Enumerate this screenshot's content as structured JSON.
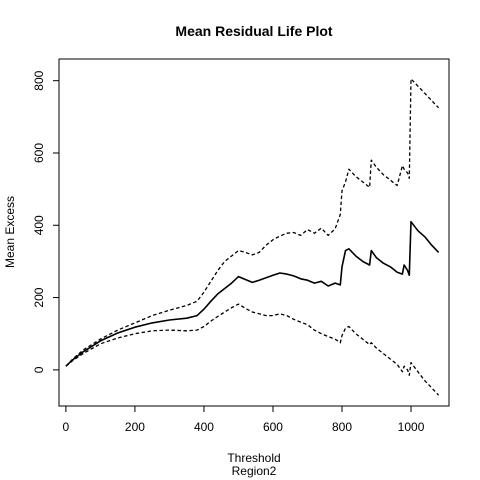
{
  "chart_data": {
    "type": "line",
    "title": "Mean Residual Life Plot",
    "xlabel": "Threshold",
    "xlabel_sub": "Region2",
    "ylabel": "Mean Excess",
    "xlim": [
      -20,
      1110
    ],
    "ylim": [
      -100,
      860
    ],
    "x_ticks": [
      0,
      200,
      400,
      600,
      800,
      1000
    ],
    "y_ticks": [
      0,
      200,
      400,
      600,
      800
    ],
    "grid": false,
    "legend": "none",
    "series": [
      {
        "role": "mean",
        "style": "solid",
        "x": [
          0,
          20,
          50,
          100,
          150,
          200,
          250,
          300,
          350,
          380,
          400,
          420,
          440,
          460,
          480,
          500,
          520,
          540,
          560,
          580,
          600,
          620,
          640,
          660,
          680,
          700,
          720,
          740,
          760,
          780,
          795,
          800,
          810,
          820,
          840,
          860,
          880,
          885,
          900,
          920,
          940,
          960,
          975,
          980,
          990,
          995,
          1000,
          1020,
          1040,
          1060,
          1080
        ],
        "y": [
          10,
          28,
          50,
          80,
          102,
          118,
          130,
          138,
          143,
          150,
          168,
          190,
          210,
          225,
          240,
          258,
          250,
          242,
          248,
          255,
          262,
          268,
          265,
          260,
          252,
          248,
          240,
          245,
          232,
          240,
          235,
          285,
          330,
          335,
          315,
          300,
          290,
          330,
          310,
          295,
          285,
          270,
          265,
          290,
          275,
          262,
          410,
          385,
          368,
          345,
          325
        ]
      },
      {
        "role": "upper-confidence",
        "style": "dashed",
        "x": [
          0,
          20,
          50,
          100,
          150,
          200,
          250,
          300,
          350,
          380,
          400,
          420,
          440,
          460,
          480,
          500,
          520,
          540,
          560,
          580,
          600,
          620,
          640,
          660,
          680,
          700,
          720,
          740,
          760,
          780,
          795,
          800,
          810,
          820,
          840,
          860,
          880,
          885,
          900,
          920,
          940,
          960,
          975,
          980,
          990,
          995,
          1000,
          1020,
          1040,
          1060,
          1080
        ],
        "y": [
          10,
          30,
          55,
          85,
          110,
          130,
          150,
          165,
          178,
          190,
          215,
          245,
          275,
          300,
          315,
          330,
          325,
          318,
          325,
          345,
          360,
          370,
          378,
          380,
          372,
          388,
          378,
          392,
          372,
          390,
          430,
          495,
          520,
          555,
          535,
          520,
          505,
          580,
          560,
          540,
          525,
          510,
          565,
          555,
          545,
          530,
          805,
          785,
          765,
          745,
          725
        ]
      },
      {
        "role": "lower-confidence",
        "style": "dashed",
        "x": [
          0,
          20,
          50,
          100,
          150,
          200,
          250,
          300,
          350,
          380,
          400,
          420,
          440,
          460,
          480,
          500,
          520,
          540,
          560,
          580,
          600,
          620,
          640,
          660,
          680,
          700,
          720,
          740,
          760,
          780,
          795,
          800,
          810,
          820,
          840,
          860,
          880,
          885,
          900,
          920,
          940,
          960,
          975,
          980,
          990,
          995,
          1000,
          1020,
          1040,
          1060,
          1080
        ],
        "y": [
          10,
          26,
          45,
          72,
          88,
          100,
          108,
          110,
          108,
          110,
          120,
          135,
          148,
          160,
          172,
          182,
          170,
          160,
          155,
          150,
          150,
          155,
          150,
          140,
          132,
          125,
          110,
          100,
          92,
          85,
          75,
          95,
          115,
          120,
          100,
          85,
          70,
          75,
          60,
          45,
          30,
          15,
          -5,
          10,
          0,
          -15,
          20,
          -5,
          -30,
          -50,
          -70
        ]
      }
    ]
  }
}
